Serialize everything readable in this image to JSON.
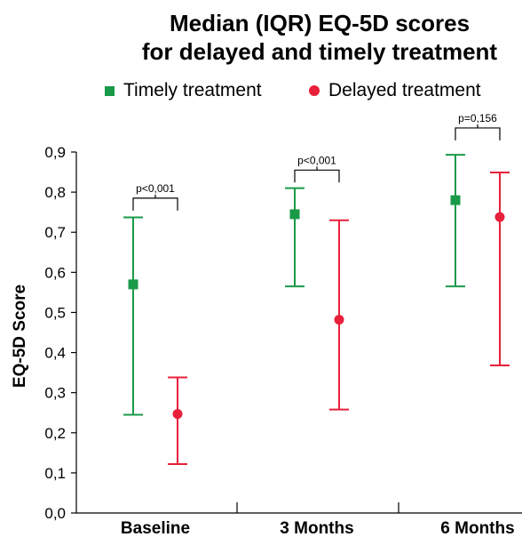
{
  "title_line1": "Median (IQR) EQ-5D scores",
  "title_line2": "for delayed and timely treatment",
  "legend": [
    {
      "label": "Timely treatment",
      "color": "#1a9a48",
      "marker": "square"
    },
    {
      "label": "Delayed treatment",
      "color": "#e8203a",
      "marker": "circle"
    }
  ],
  "chart_data": {
    "type": "scatter",
    "title": "Median (IQR) EQ-5D scores for delayed and timely treatment",
    "xlabel": "",
    "ylabel": "EQ-5D Score",
    "categories": [
      "Baseline",
      "3 Months",
      "6 Months"
    ],
    "ylim": [
      0,
      0.9
    ],
    "yticks": [
      "0,0",
      "0,1",
      "0,2",
      "0,3",
      "0,4",
      "0,5",
      "0,6",
      "0,7",
      "0,8",
      "0,9"
    ],
    "series": [
      {
        "name": "Timely treatment",
        "color": "#1a9a48",
        "marker": "square",
        "median": [
          0.57,
          0.745,
          0.78
        ],
        "q1": [
          0.245,
          0.565,
          0.565
        ],
        "q3": [
          0.737,
          0.81,
          0.893
        ]
      },
      {
        "name": "Delayed treatment",
        "color": "#e8203a",
        "marker": "circle",
        "median": [
          0.247,
          0.482,
          0.738
        ],
        "q1": [
          0.122,
          0.258,
          0.368
        ],
        "q3": [
          0.338,
          0.73,
          0.849
        ]
      }
    ],
    "annotations": [
      {
        "category": "Baseline",
        "text": "p<0,001",
        "level": 0.785
      },
      {
        "category": "3 Months",
        "text": "p<0,001",
        "level": 0.855
      },
      {
        "category": "6 Months",
        "text": "p=0,156",
        "level": 0.96
      }
    ]
  }
}
